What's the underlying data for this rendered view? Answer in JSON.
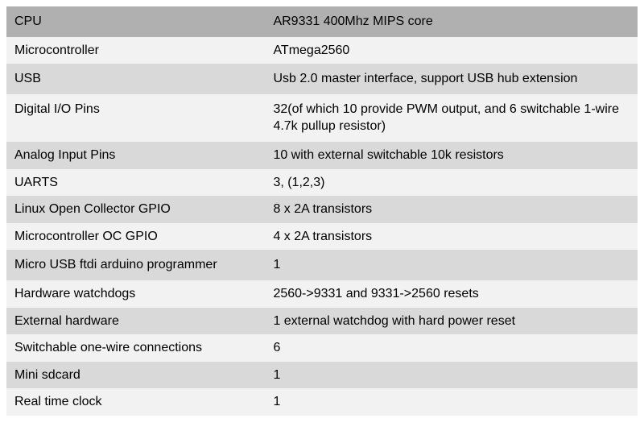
{
  "table": {
    "type": "table",
    "columns": [
      "label",
      "value"
    ],
    "col_widths": [
      "41%",
      "59%"
    ],
    "header_bg": "#b0b0b0",
    "light_bg": "#f2f2f2",
    "dark_bg": "#d9d9d9",
    "text_color": "#000000",
    "font_size": 16,
    "rows": [
      {
        "kind": "header",
        "label": "CPU",
        "value": "AR9331 400Mhz MIPS core",
        "tall": true
      },
      {
        "kind": "light",
        "label": "Microcontroller",
        "value": "ATmega2560"
      },
      {
        "kind": "dark",
        "label": "USB",
        "value": "Usb 2.0 master interface, support USB hub extension",
        "tall": true
      },
      {
        "kind": "light",
        "label": "Digital I/O Pins",
        "value": "32(of which 10 provide PWM output, and 6 switchable 1-wire 4.7k pullup resistor)",
        "tall": true
      },
      {
        "kind": "dark",
        "label": "Analog Input Pins",
        "value": "10 with external switchable 10k resistors"
      },
      {
        "kind": "light",
        "label": "UARTS",
        "value": "3, (1,2,3)"
      },
      {
        "kind": "dark",
        "label": "Linux Open Collector GPIO",
        "value": "8 x 2A transistors"
      },
      {
        "kind": "light",
        "label": "Microcontroller OC GPIO",
        "value": "4 x 2A transistors"
      },
      {
        "kind": "dark",
        "label": "Micro USB ftdi arduino programmer",
        "value": "1",
        "tall": true
      },
      {
        "kind": "light",
        "label": "Hardware watchdogs",
        "value": "2560->9331 and 9331->2560 resets"
      },
      {
        "kind": "dark",
        "label": "External hardware",
        "value": "1 external watchdog with hard power reset"
      },
      {
        "kind": "light",
        "label": "Switchable one-wire connections",
        "value": "6"
      },
      {
        "kind": "dark",
        "label": "Mini sdcard",
        "value": "1"
      },
      {
        "kind": "light",
        "label": "Real time clock",
        "value": "1"
      }
    ]
  }
}
